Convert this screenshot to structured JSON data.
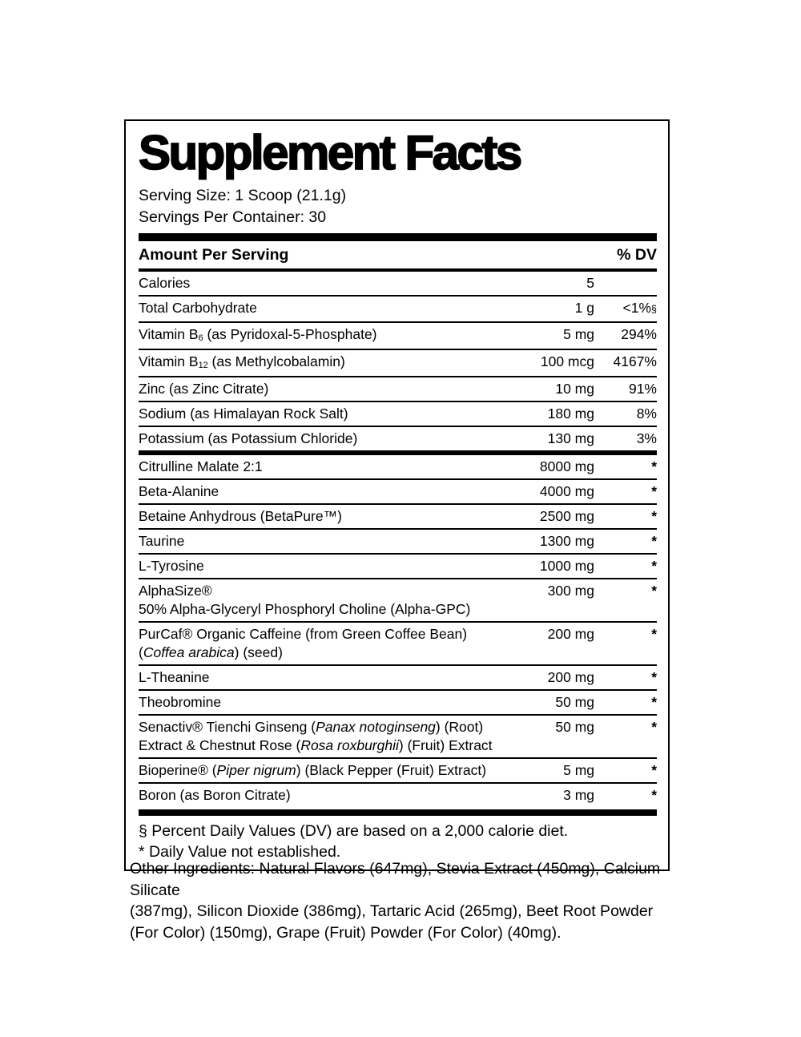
{
  "title": "Supplement Facts",
  "serving_info": {
    "lines": [
      "Serving Size: 1 Scoop (21.1g)",
      "Servings Per Container: 30"
    ]
  },
  "table_header": {
    "amount_col": "Amount Per Serving",
    "dv_col": "% DV"
  },
  "rows": [
    {
      "label": [
        {
          "t": "Calories"
        }
      ],
      "amount": "5",
      "dv": ""
    },
    {
      "label": [
        {
          "t": "Total Carbohydrate"
        }
      ],
      "amount": "1 g",
      "dv": "<1%",
      "dv_note": "§"
    },
    {
      "label": [
        {
          "t": "Vitamin B"
        },
        {
          "t": "6",
          "s": "sub"
        },
        {
          "t": " (as Pyridoxal-5-Phosphate)"
        }
      ],
      "amount": "5 mg",
      "dv": "294%"
    },
    {
      "label": [
        {
          "t": "Vitamin B"
        },
        {
          "t": "12",
          "s": "sub"
        },
        {
          "t": " (as Methylcobalamin)"
        }
      ],
      "amount": "100 mcg",
      "dv": "4167%"
    },
    {
      "label": [
        {
          "t": "Zinc (as Zinc Citrate)"
        }
      ],
      "amount": "10 mg",
      "dv": "91%"
    },
    {
      "label": [
        {
          "t": "Sodium (as Himalayan Rock Salt)"
        }
      ],
      "amount": "180 mg",
      "dv": "8%"
    },
    {
      "label": [
        {
          "t": "Potassium (as Potassium Chloride)"
        }
      ],
      "amount": "130 mg",
      "dv": "3%",
      "section_end": true
    },
    {
      "label": [
        {
          "t": "Citrulline Malate 2:1"
        }
      ],
      "amount": "8000 mg",
      "dv": "*"
    },
    {
      "label": [
        {
          "t": "Beta-Alanine"
        }
      ],
      "amount": "4000 mg",
      "dv": "*"
    },
    {
      "label": [
        {
          "t": "Betaine Anhydrous (BetaPure™)"
        }
      ],
      "amount": "2500 mg",
      "dv": "*"
    },
    {
      "label": [
        {
          "t": "Taurine"
        }
      ],
      "amount": "1300 mg",
      "dv": "*"
    },
    {
      "label": [
        {
          "t": "L-Tyrosine"
        }
      ],
      "amount": "1000 mg",
      "dv": "*"
    },
    {
      "label": [
        {
          "t": "AlphaSize®"
        }
      ],
      "label2": [
        {
          "t": "50% Alpha-Glyceryl Phosphoryl Choline (Alpha-GPC)"
        }
      ],
      "amount": "300 mg",
      "dv": "*"
    },
    {
      "label": [
        {
          "t": "PurCaf® Organic Caffeine (from Green Coffee Bean)"
        }
      ],
      "label2": [
        {
          "t": "("
        },
        {
          "t": "Coffea arabica",
          "s": "i"
        },
        {
          "t": ") (seed)"
        }
      ],
      "amount": "200 mg",
      "dv": "*"
    },
    {
      "label": [
        {
          "t": "L-Theanine"
        }
      ],
      "amount": "200 mg",
      "dv": "*"
    },
    {
      "label": [
        {
          "t": "Theobromine"
        }
      ],
      "amount": "50 mg",
      "dv": "*"
    },
    {
      "label": [
        {
          "t": "Senactiv® Tienchi Ginseng ("
        },
        {
          "t": "Panax notoginseng",
          "s": "i"
        },
        {
          "t": ") (Root)"
        }
      ],
      "label2": [
        {
          "t": "Extract & Chestnut Rose ("
        },
        {
          "t": "Rosa roxburghii",
          "s": "i"
        },
        {
          "t": ") (Fruit) Extract"
        }
      ],
      "amount": "50 mg",
      "dv": "*"
    },
    {
      "label": [
        {
          "t": "Bioperine® ("
        },
        {
          "t": "Piper nigrum",
          "s": "i"
        },
        {
          "t": ") (Black Pepper (Fruit) Extract)"
        }
      ],
      "amount": "5 mg",
      "dv": "*"
    },
    {
      "label": [
        {
          "t": "Boron (as Boron Citrate)"
        }
      ],
      "amount": "3 mg",
      "dv": "*"
    }
  ],
  "footnotes": [
    "§ Percent Daily Values (DV) are based on a 2,000 calorie diet.",
    "* Daily Value not established."
  ],
  "other_ingredients": {
    "lines": [
      "Other Ingredients: Natural Flavors (647mg), Stevia Extract (450mg), Calcium Silicate",
      "(387mg), Silicon Dioxide (386mg), Tartaric Acid (265mg), Beet Root Powder",
      "(For Color) (150mg), Grape (Fruit) Powder (For Color) (40mg)."
    ]
  },
  "colors": {
    "text": "#000000",
    "background": "#ffffff"
  }
}
